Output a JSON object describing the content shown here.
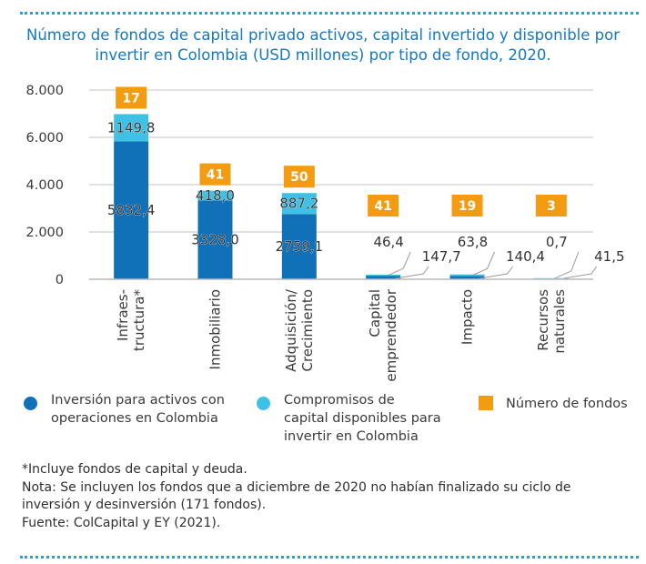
{
  "title": "Número de fondos de capital privado activos, capital invertido y disponible por invertir en Colombia (USD millones) por tipo de fondo, 2020.",
  "colors": {
    "invested": "#1171b8",
    "available": "#3fc1e6",
    "funds": "#f39c12",
    "title": "#1578c0",
    "grid": "#cfcfcf",
    "dots": "#1aa6d6"
  },
  "chart_data": {
    "type": "bar",
    "stacked": true,
    "categories": [
      "Infraes-\ntructura*",
      "Inmobiliario",
      "Adquisición/\nCrecimiento",
      "Capital\nemprendedor",
      "Impacto",
      "Recursos\nnaturales"
    ],
    "series": [
      {
        "name": "Inversión para activos con operaciones en Colombia",
        "values": [
          5832.4,
          3328.0,
          2759.1,
          147.7,
          140.4,
          41.5
        ],
        "labels": [
          "5832,4",
          "3328,0",
          "2759,1",
          "147,7",
          "140,4",
          "41,5"
        ]
      },
      {
        "name": "Compromisos de capital disponibles para invertir en Colombia",
        "values": [
          1149.8,
          418.0,
          887.2,
          46.4,
          63.8,
          0.7
        ],
        "labels": [
          "1149,8",
          "418,0",
          "887,2",
          "46,4",
          "63,8",
          "0,7"
        ]
      }
    ],
    "fund_counts": {
      "name": "Número de fondos",
      "values": [
        17,
        41,
        50,
        41,
        19,
        3
      ]
    },
    "ylim": [
      0,
      8000
    ],
    "yticks": [
      0,
      2000,
      4000,
      6000,
      8000
    ],
    "ytick_labels": [
      "0",
      "2.000",
      "4.000",
      "6.000",
      "8.000"
    ],
    "grid": true,
    "legend": "bottom"
  },
  "legend": {
    "invested": "Inversión para activos con\noperaciones en Colombia",
    "available": "Compromisos de\ncapital disponibles para\ninvertir en Colombia",
    "funds": "Número de fondos"
  },
  "notes": {
    "footnote": "*Incluye fondos de capital y deuda.",
    "note_line1": "Nota: Se incluyen los fondos que a diciembre de 2020 no habían finalizado su ciclo de",
    "note_line2": "inversión y desinversión (171 fondos).",
    "source": "Fuente: ColCapital y EY (2021)."
  }
}
